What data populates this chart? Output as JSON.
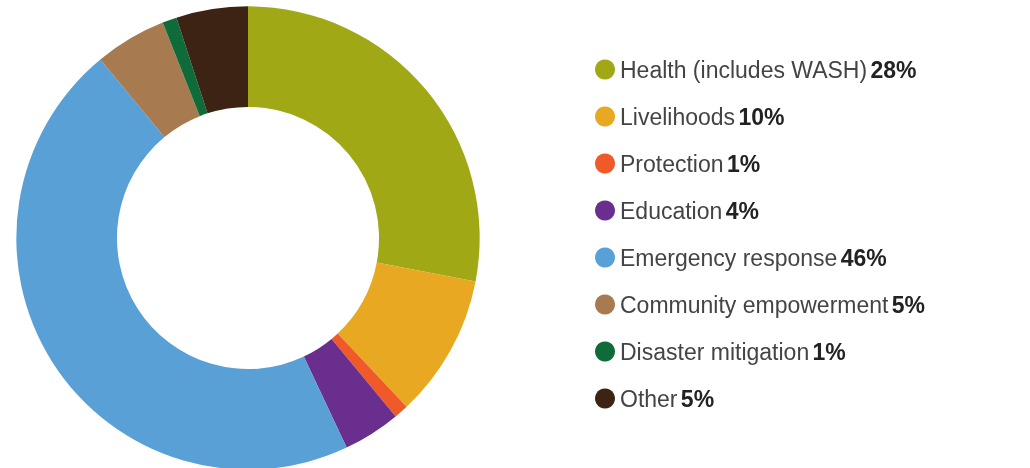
{
  "chart_data": {
    "type": "donut",
    "categories": [
      "Health (includes WASH)",
      "Livelihoods",
      "Protection",
      "Education",
      "Emergency response",
      "Community empowerment",
      "Disaster mitigation",
      "Other"
    ],
    "values": [
      28,
      10,
      1,
      4,
      46,
      5,
      1,
      5
    ],
    "value_labels": [
      "28%",
      "10%",
      "1%",
      "4%",
      "46%",
      "5%",
      "1%",
      "5%"
    ],
    "colors": [
      "#a0a816",
      "#e8a821",
      "#f05a28",
      "#6a2e8f",
      "#58a0d5",
      "#a87a50",
      "#0f6b3a",
      "#3d2314"
    ],
    "legend": "right"
  }
}
